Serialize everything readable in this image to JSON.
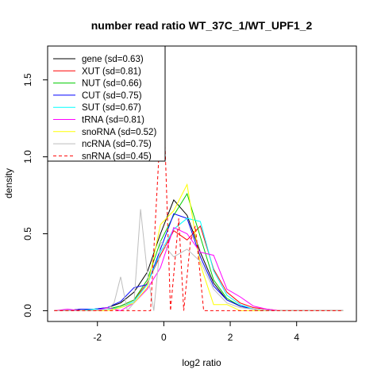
{
  "chart_data": {
    "type": "line",
    "title": "number read ratio WT_37C_1/WT_UPF1_2",
    "xlabel": "log2 ratio",
    "ylabel": "density",
    "xlim": [
      -3.5,
      5.8
    ],
    "ylim": [
      -0.07,
      1.72
    ],
    "xticks": [
      -2,
      0,
      2,
      4
    ],
    "yticks": [
      0.0,
      0.5,
      1.0,
      1.5
    ],
    "xtick_labels": [
      "-2",
      "0",
      "2",
      "4"
    ],
    "ytick_labels": [
      "0.0",
      "0.5",
      "1.0",
      "1.5"
    ],
    "grid": false,
    "legend_position": "top-left",
    "series": [
      {
        "name": "gene (sd=0.63)",
        "color": "#000000",
        "dash": "solid",
        "x": [
          -3.3,
          -2.9,
          -2.5,
          -2.1,
          -1.7,
          -1.3,
          -0.9,
          -0.5,
          -0.1,
          0.3,
          0.7,
          1.1,
          1.5,
          1.9,
          2.3,
          2.7,
          3.1,
          3.5,
          3.9,
          4.3,
          4.7,
          5.1,
          5.4
        ],
        "y": [
          0.0,
          0.0,
          0.01,
          0.01,
          0.02,
          0.05,
          0.12,
          0.25,
          0.5,
          0.72,
          0.62,
          0.38,
          0.18,
          0.07,
          0.03,
          0.01,
          0.0,
          0.0,
          0.0,
          0.0,
          0.0,
          0.0,
          0.0
        ]
      },
      {
        "name": "XUT (sd=0.81)",
        "color": "#ff0000",
        "dash": "solid",
        "x": [
          -3.3,
          -2.9,
          -2.5,
          -2.1,
          -1.7,
          -1.3,
          -0.9,
          -0.5,
          -0.1,
          0.3,
          0.7,
          1.1,
          1.5,
          1.9,
          2.3,
          2.7,
          3.1,
          3.5,
          3.9,
          4.3,
          4.7,
          5.1,
          5.4
        ],
        "y": [
          0.0,
          0.0,
          0.01,
          0.01,
          0.01,
          0.03,
          0.07,
          0.18,
          0.36,
          0.52,
          0.46,
          0.55,
          0.27,
          0.12,
          0.05,
          0.02,
          0.01,
          0.0,
          0.0,
          0.0,
          0.0,
          0.0,
          0.0
        ]
      },
      {
        "name": "NUT (sd=0.66)",
        "color": "#00cc00",
        "dash": "solid",
        "x": [
          -3.3,
          -2.9,
          -2.5,
          -2.1,
          -1.7,
          -1.3,
          -0.9,
          -0.5,
          -0.1,
          0.3,
          0.7,
          1.1,
          1.5,
          1.9,
          2.3,
          2.7,
          3.1,
          3.5,
          3.9,
          4.3,
          4.7,
          5.1,
          5.4
        ],
        "y": [
          0.0,
          0.0,
          0.0,
          0.01,
          0.01,
          0.03,
          0.07,
          0.2,
          0.45,
          0.62,
          0.76,
          0.48,
          0.2,
          0.08,
          0.03,
          0.01,
          0.0,
          0.0,
          0.0,
          0.0,
          0.0,
          0.0,
          0.0
        ]
      },
      {
        "name": "CUT (sd=0.75)",
        "color": "#0000ff",
        "dash": "solid",
        "x": [
          -3.3,
          -2.9,
          -2.5,
          -2.1,
          -1.7,
          -1.3,
          -0.9,
          -0.5,
          -0.1,
          0.3,
          0.7,
          1.1,
          1.5,
          1.9,
          2.3,
          2.7,
          3.1,
          3.5,
          3.9,
          4.3,
          4.7,
          5.1,
          5.4
        ],
        "y": [
          0.0,
          0.0,
          0.01,
          0.01,
          0.02,
          0.06,
          0.15,
          0.17,
          0.4,
          0.63,
          0.6,
          0.35,
          0.16,
          0.07,
          0.03,
          0.01,
          0.0,
          0.0,
          0.0,
          0.0,
          0.0,
          0.0,
          0.0
        ]
      },
      {
        "name": "SUT (sd=0.67)",
        "color": "#00ffff",
        "dash": "solid",
        "x": [
          -3.3,
          -2.9,
          -2.5,
          -2.1,
          -1.7,
          -1.3,
          -0.9,
          -0.5,
          -0.1,
          0.3,
          0.7,
          1.1,
          1.5,
          1.9,
          2.3,
          2.7,
          3.1,
          3.5,
          3.9,
          4.3,
          4.7,
          5.1,
          5.4
        ],
        "y": [
          0.0,
          0.0,
          0.0,
          0.01,
          0.01,
          0.02,
          0.06,
          0.17,
          0.38,
          0.53,
          0.6,
          0.58,
          0.26,
          0.1,
          0.04,
          0.01,
          0.0,
          0.0,
          0.0,
          0.0,
          0.0,
          0.0,
          0.0
        ]
      },
      {
        "name": "tRNA (sd=0.81)",
        "color": "#ff00ff",
        "dash": "solid",
        "x": [
          -3.3,
          -2.9,
          -2.5,
          -2.1,
          -1.7,
          -1.3,
          -0.9,
          -0.5,
          -0.1,
          0.3,
          0.7,
          1.1,
          1.5,
          1.9,
          2.3,
          2.7,
          3.1,
          3.5,
          3.9,
          4.3,
          4.7,
          5.1,
          5.4
        ],
        "y": [
          0.0,
          0.01,
          0.0,
          0.0,
          0.02,
          0.0,
          0.05,
          0.14,
          0.28,
          0.54,
          0.5,
          0.38,
          0.36,
          0.14,
          0.09,
          0.03,
          0.01,
          0.0,
          0.0,
          0.0,
          0.0,
          0.0,
          0.0
        ]
      },
      {
        "name": "snoRNA (sd=0.52)",
        "color": "#ffff00",
        "dash": "solid",
        "x": [
          -3.3,
          -2.9,
          -2.5,
          -2.1,
          -1.7,
          -1.3,
          -0.9,
          -0.5,
          -0.1,
          0.3,
          0.7,
          1.1,
          1.5,
          1.9,
          2.3,
          2.7,
          3.1,
          3.5,
          3.9,
          4.3,
          4.7,
          5.1,
          5.4
        ],
        "y": [
          0.0,
          0.0,
          0.0,
          0.0,
          0.0,
          0.02,
          0.05,
          0.15,
          0.56,
          0.65,
          0.82,
          0.3,
          0.04,
          0.04,
          0.0,
          0.0,
          0.0,
          0.0,
          0.0,
          0.0,
          0.0,
          0.0,
          0.0
        ]
      },
      {
        "name": "ncRNA (sd=0.75)",
        "color": "#bebebe",
        "dash": "solid",
        "x": [
          -3.3,
          -2.9,
          -2.5,
          -2.1,
          -1.7,
          -1.5,
          -1.3,
          -1.1,
          -0.9,
          -0.7,
          -0.5,
          -0.3,
          -0.1,
          0.3,
          0.7,
          1.1,
          1.5,
          1.9,
          2.3,
          2.7,
          3.1,
          3.5,
          3.9,
          4.3,
          4.7,
          5.1,
          5.4
        ],
        "y": [
          0.0,
          0.0,
          0.0,
          0.0,
          0.01,
          0.05,
          0.22,
          0.0,
          0.05,
          0.66,
          0.25,
          0.0,
          0.45,
          0.35,
          0.4,
          0.32,
          0.14,
          0.05,
          0.02,
          0.01,
          0.0,
          0.0,
          0.0,
          0.0,
          0.0,
          0.0,
          0.0
        ]
      },
      {
        "name": "snRNA (sd=0.45)",
        "color": "#ff0000",
        "dash": "dashed",
        "x": [
          -3.3,
          -2.5,
          -1.7,
          -0.9,
          -0.4,
          -0.15,
          -0.05,
          0.2,
          0.45,
          0.6,
          0.8,
          0.95,
          1.2,
          2.0,
          3.0,
          4.0,
          5.4
        ],
        "y": [
          0.0,
          0.0,
          0.0,
          0.0,
          0.0,
          1.0,
          1.65,
          0.0,
          0.6,
          0.0,
          0.45,
          0.55,
          0.0,
          0.0,
          0.0,
          0.0,
          0.0
        ]
      }
    ]
  }
}
